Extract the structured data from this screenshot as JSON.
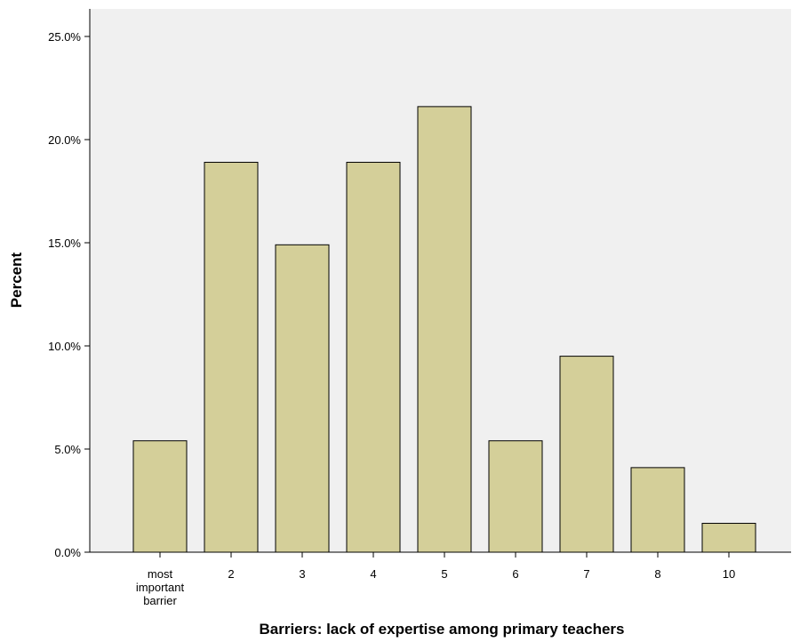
{
  "chart_data": {
    "type": "bar",
    "categories": [
      [
        "most",
        "important",
        "barrier"
      ],
      [
        "2"
      ],
      [
        "3"
      ],
      [
        "4"
      ],
      [
        "5"
      ],
      [
        "6"
      ],
      [
        "7"
      ],
      [
        "8"
      ],
      [
        "10"
      ]
    ],
    "values": [
      5.4,
      18.9,
      14.9,
      18.9,
      21.6,
      5.4,
      9.5,
      4.1,
      1.4
    ],
    "xlabel": "Barriers: lack of expertise among primary teachers",
    "ylabel": "Percent",
    "ylim": [
      0,
      25
    ],
    "yticks": [
      "0.0%",
      "5.0%",
      "10.0%",
      "15.0%",
      "20.0%",
      "25.0%"
    ],
    "ytick_values": [
      0,
      5,
      10,
      15,
      20,
      25
    ],
    "grid": false,
    "colors": {
      "bar_fill": "#d4cf99",
      "bar_stroke": "#000000",
      "plot_background": "#f0f0f0"
    }
  }
}
